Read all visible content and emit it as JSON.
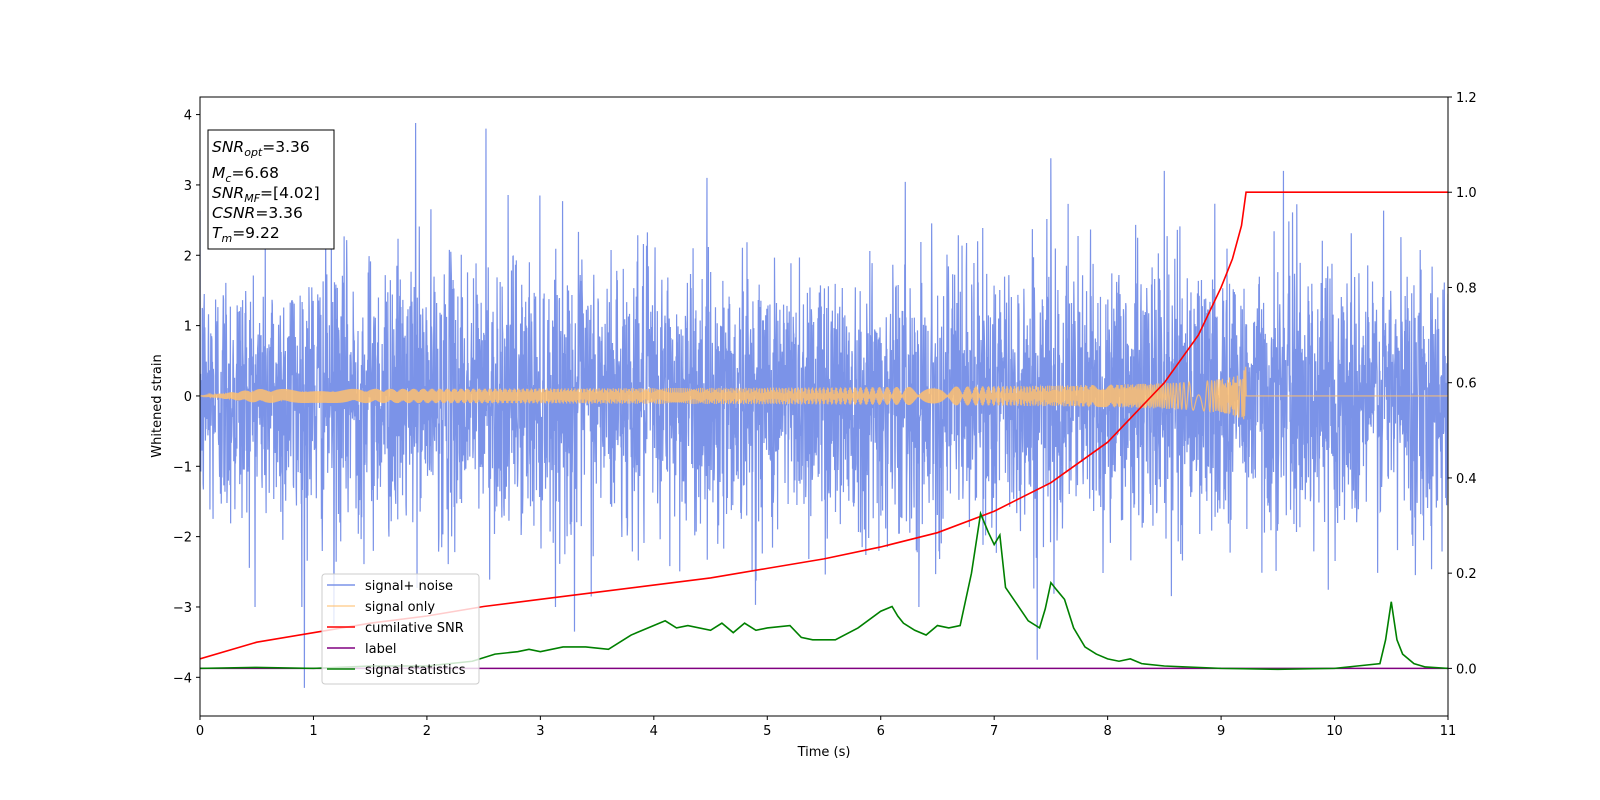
{
  "chart_data": {
    "type": "line",
    "xlabel": "Time (s)",
    "ylabel": "Whitened strain",
    "xlim": [
      0,
      11
    ],
    "ylim": [
      -4.55,
      4.25
    ],
    "y2lim": [
      -0.1,
      1.2
    ],
    "xticks": [
      "0",
      "1",
      "2",
      "3",
      "4",
      "5",
      "6",
      "7",
      "8",
      "9",
      "10",
      "11"
    ],
    "yticks": [
      "4",
      "3",
      "2",
      "1",
      "0",
      "−1",
      "−2",
      "−3",
      "−4"
    ],
    "y2ticks": [
      "1.2",
      "1.0",
      "0.8",
      "0.6",
      "0.4",
      "0.2",
      "0.0"
    ],
    "grid": false,
    "legend_position": "lower-left",
    "info_box": {
      "snr_opt": {
        "sym": "SNR",
        "sub": "opt",
        "value": "=3.36"
      },
      "mc": {
        "sym": "M",
        "sub": "c",
        "value": "=6.68"
      },
      "snr_mf": {
        "sym": "SNR",
        "sub": "MF",
        "value": "=[4.02]"
      },
      "csnr": {
        "sym": "CSNR",
        "value": "=3.36"
      },
      "tm": {
        "sym": "T",
        "sub": "m",
        "value": "=9.22"
      }
    },
    "series": [
      {
        "name": "signal+ noise",
        "color": "#7b93e8",
        "axis": "left",
        "description_values": {
          "amplitude_typical": 2.0,
          "max": 3.88,
          "min": -4.15,
          "mean": 0.0
        },
        "peaks": [
          [
            1.9,
            3.88
          ],
          [
            2.52,
            3.8
          ],
          [
            0.92,
            -4.15
          ],
          [
            1.18,
            -3.25
          ],
          [
            3.3,
            -3.35
          ],
          [
            7.38,
            -3.75
          ],
          [
            7.5,
            3.38
          ],
          [
            9.55,
            3.2
          ],
          [
            8.5,
            3.2
          ]
        ]
      },
      {
        "name": "signal only",
        "color": "#ffbf6e",
        "axis": "left",
        "merger_time": 9.22,
        "peak_amplitude": 0.45
      },
      {
        "name": "cumilative SNR",
        "color": "#ff0000",
        "axis": "right",
        "x": [
          0,
          0.5,
          1,
          1.5,
          2,
          2.5,
          3,
          3.5,
          4,
          4.5,
          5,
          5.5,
          6,
          6.5,
          7,
          7.5,
          8,
          8.5,
          8.8,
          9.0,
          9.1,
          9.18,
          9.22,
          11
        ],
        "y": [
          0.02,
          0.055,
          0.075,
          0.095,
          0.11,
          0.13,
          0.145,
          0.16,
          0.175,
          0.19,
          0.21,
          0.23,
          0.255,
          0.285,
          0.33,
          0.39,
          0.475,
          0.6,
          0.7,
          0.8,
          0.86,
          0.93,
          1.0,
          1.0
        ]
      },
      {
        "name": "label",
        "color": "#800080",
        "axis": "right",
        "x": [
          0,
          11
        ],
        "y": [
          0,
          0
        ]
      },
      {
        "name": "signal statistics",
        "color": "#008000",
        "axis": "right",
        "x": [
          0,
          0.5,
          1,
          1.5,
          2,
          2.4,
          2.6,
          2.8,
          2.9,
          3.0,
          3.2,
          3.4,
          3.6,
          3.8,
          3.9,
          4.0,
          4.1,
          4.2,
          4.3,
          4.5,
          4.6,
          4.7,
          4.8,
          4.9,
          5.0,
          5.2,
          5.3,
          5.4,
          5.6,
          5.8,
          6.0,
          6.1,
          6.15,
          6.2,
          6.3,
          6.4,
          6.5,
          6.6,
          6.7,
          6.8,
          6.88,
          6.95,
          7.0,
          7.05,
          7.1,
          7.2,
          7.3,
          7.4,
          7.45,
          7.5,
          7.55,
          7.62,
          7.7,
          7.8,
          7.9,
          8.0,
          8.1,
          8.2,
          8.3,
          8.5,
          9.0,
          9.5,
          10.0,
          10.2,
          10.4,
          10.45,
          10.5,
          10.55,
          10.6,
          10.7,
          10.8,
          11.0
        ],
        "y": [
          0.0,
          0.002,
          0.0,
          0.005,
          0.005,
          0.015,
          0.03,
          0.035,
          0.04,
          0.035,
          0.045,
          0.045,
          0.04,
          0.07,
          0.08,
          0.09,
          0.1,
          0.085,
          0.09,
          0.08,
          0.095,
          0.075,
          0.095,
          0.08,
          0.085,
          0.09,
          0.065,
          0.06,
          0.06,
          0.085,
          0.12,
          0.13,
          0.11,
          0.095,
          0.08,
          0.07,
          0.09,
          0.085,
          0.09,
          0.2,
          0.325,
          0.285,
          0.26,
          0.28,
          0.17,
          0.135,
          0.1,
          0.085,
          0.125,
          0.18,
          0.165,
          0.145,
          0.085,
          0.045,
          0.03,
          0.02,
          0.015,
          0.02,
          0.01,
          0.005,
          0.0,
          -0.002,
          0.0,
          0.005,
          0.01,
          0.06,
          0.14,
          0.06,
          0.03,
          0.01,
          0.003,
          0.0
        ]
      }
    ]
  }
}
